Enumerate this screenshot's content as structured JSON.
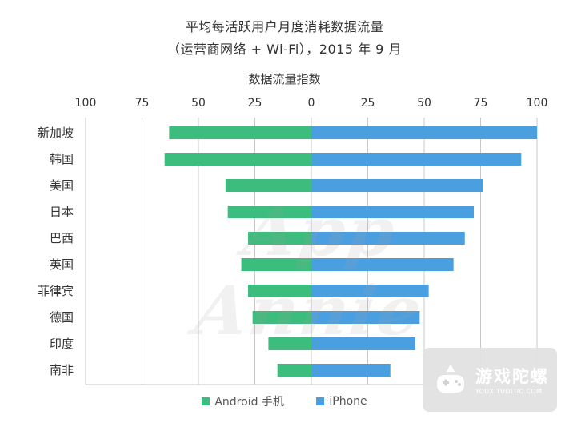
{
  "chart_data": {
    "type": "bar",
    "orientation": "horizontal-diverging",
    "title": "平均每活跃用户月度消耗数据流量",
    "subtitle": "（运营商网络 + Wi-Fi），2015 年 9 月",
    "xlabel": "数据流量指数",
    "ticks_left": [
      "100",
      "75",
      "50",
      "25"
    ],
    "ticks_right": [
      "0",
      "25",
      "50",
      "75",
      "100"
    ],
    "xlim": [
      0,
      100
    ],
    "categories": [
      "新加坡",
      "韩国",
      "美国",
      "日本",
      "巴西",
      "英国",
      "菲律宾",
      "德国",
      "印度",
      "南非"
    ],
    "series": [
      {
        "name": "Android 手机",
        "side": "left",
        "color": "#3dbd7d",
        "values": [
          63,
          65,
          38,
          37,
          28,
          31,
          28,
          26,
          19,
          15
        ]
      },
      {
        "name": "iPhone",
        "side": "right",
        "color": "#4a9fe0",
        "values": [
          100,
          93,
          76,
          72,
          68,
          63,
          52,
          48,
          46,
          35
        ]
      }
    ],
    "grid": true,
    "legend_position": "bottom"
  },
  "watermark": "App Annie",
  "badge": {
    "name": "游戏陀螺",
    "url": "YOUXITUOLUO.COM"
  }
}
